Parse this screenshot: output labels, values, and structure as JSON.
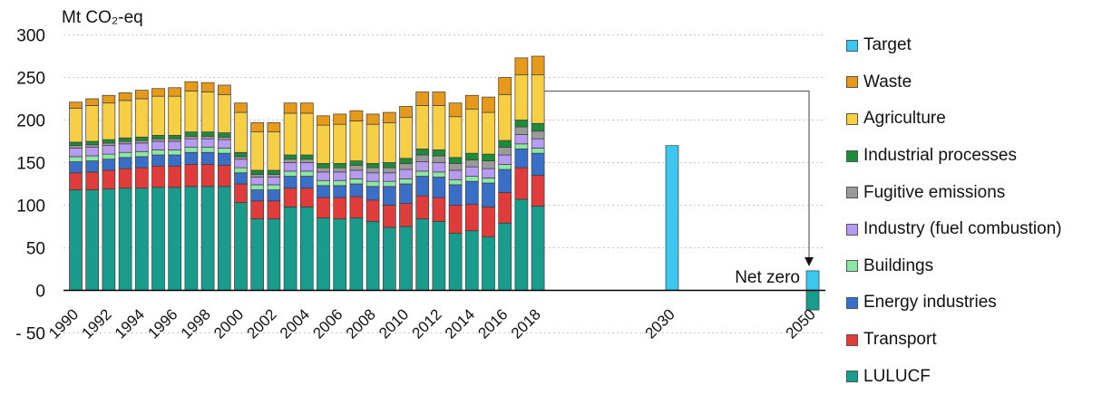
{
  "chart_data": {
    "type": "bar",
    "stacked": true,
    "unit_label": "Mt CO₂-eq",
    "ylim": [
      -50,
      300
    ],
    "yticks": [
      300,
      250,
      200,
      150,
      100,
      50,
      0,
      -50
    ],
    "ytick_labels": [
      "300",
      "250",
      "200",
      "150",
      "100",
      "50",
      "0",
      "- 50"
    ],
    "categories": [
      "1990",
      "1991",
      "1992",
      "1993",
      "1994",
      "1995",
      "1996",
      "1997",
      "1998",
      "1999",
      "2000",
      "2001",
      "2002",
      "2003",
      "2004",
      "2005",
      "2006",
      "2007",
      "2008",
      "2009",
      "2010",
      "2011",
      "2012",
      "2013",
      "2014",
      "2015",
      "2016",
      "2017",
      "2018",
      "2030",
      "2050"
    ],
    "xtick_labels": [
      "1990",
      "1992",
      "1994",
      "1996",
      "1998",
      "2000",
      "2002",
      "2004",
      "2006",
      "2008",
      "2010",
      "2012",
      "2014",
      "2016",
      "2018",
      "2030",
      "2050"
    ],
    "legend_placement": "right",
    "series": [
      {
        "name": "LULUCF",
        "color": "#1a9c8c",
        "values": [
          118,
          118,
          119,
          120,
          120,
          121,
          121,
          122,
          122,
          122,
          103,
          84,
          84,
          98,
          98,
          85,
          84,
          85,
          81,
          74,
          75,
          84,
          81,
          67,
          70,
          63,
          79,
          107,
          99,
          0,
          -23
        ]
      },
      {
        "name": "Transport",
        "color": "#e03c3c",
        "values": [
          20,
          21,
          22,
          23,
          24,
          25,
          25,
          26,
          26,
          25,
          22,
          21,
          21,
          22,
          22,
          24,
          25,
          25,
          25,
          26,
          27,
          27,
          28,
          33,
          31,
          35,
          36,
          37,
          36,
          0,
          0
        ]
      },
      {
        "name": "Energy industries",
        "color": "#3a6fc8",
        "values": [
          13,
          13,
          13,
          13,
          13,
          13,
          13,
          14,
          14,
          14,
          13,
          13,
          13,
          14,
          14,
          14,
          14,
          15,
          16,
          22,
          23,
          23,
          24,
          24,
          27,
          28,
          27,
          22,
          26,
          0,
          0
        ]
      },
      {
        "name": "Buildings",
        "color": "#8ee6a4",
        "values": [
          6,
          6,
          6,
          6,
          6,
          6,
          6,
          6,
          6,
          6,
          6,
          6,
          6,
          6,
          6,
          6,
          6,
          6,
          6,
          6,
          6,
          6,
          6,
          6,
          6,
          6,
          6,
          6,
          6,
          0,
          0
        ]
      },
      {
        "name": "Industry (fuel combustion)",
        "color": "#b79bf0",
        "values": [
          10,
          10,
          10,
          10,
          10,
          10,
          10,
          10,
          10,
          10,
          10,
          9,
          9,
          10,
          10,
          10,
          10,
          10,
          10,
          10,
          11,
          11,
          11,
          11,
          11,
          11,
          11,
          11,
          11,
          0,
          0
        ]
      },
      {
        "name": "Fugitive emissions",
        "color": "#9a9a9a",
        "values": [
          3,
          3,
          3,
          3,
          3,
          3,
          3,
          3,
          3,
          3,
          3,
          3,
          3,
          4,
          4,
          5,
          5,
          6,
          6,
          6,
          7,
          8,
          8,
          8,
          8,
          9,
          9,
          9,
          9,
          0,
          0
        ]
      },
      {
        "name": "Industrial processes",
        "color": "#1e8a3a",
        "values": [
          4,
          4,
          4,
          4,
          4,
          4,
          4,
          5,
          5,
          5,
          5,
          5,
          5,
          5,
          5,
          5,
          5,
          5,
          5,
          6,
          6,
          7,
          7,
          7,
          8,
          8,
          8,
          8,
          9,
          0,
          0
        ]
      },
      {
        "name": "Agriculture",
        "color": "#f6cf45",
        "values": [
          40,
          42,
          43,
          44,
          45,
          46,
          46,
          48,
          47,
          45,
          47,
          45,
          45,
          49,
          49,
          45,
          46,
          47,
          46,
          47,
          48,
          51,
          52,
          48,
          52,
          49,
          54,
          53,
          57,
          0,
          0
        ]
      },
      {
        "name": "Waste",
        "color": "#e69a1c",
        "values": [
          7,
          8,
          9,
          9,
          10,
          9,
          10,
          11,
          11,
          11,
          11,
          11,
          11,
          12,
          12,
          11,
          12,
          12,
          12,
          12,
          13,
          16,
          16,
          16,
          16,
          18,
          20,
          20,
          22,
          0,
          0
        ]
      },
      {
        "name": "Target",
        "color": "#3cc7ee",
        "values": [
          0,
          0,
          0,
          0,
          0,
          0,
          0,
          0,
          0,
          0,
          0,
          0,
          0,
          0,
          0,
          0,
          0,
          0,
          0,
          0,
          0,
          0,
          0,
          0,
          0,
          0,
          0,
          0,
          0,
          170,
          23
        ]
      }
    ],
    "annotations": [
      {
        "text": "Net zero",
        "category": "2050"
      }
    ],
    "arrow": {
      "from_category": "2018",
      "to_category": "2050",
      "from_value": 234,
      "to_value": 23
    }
  }
}
